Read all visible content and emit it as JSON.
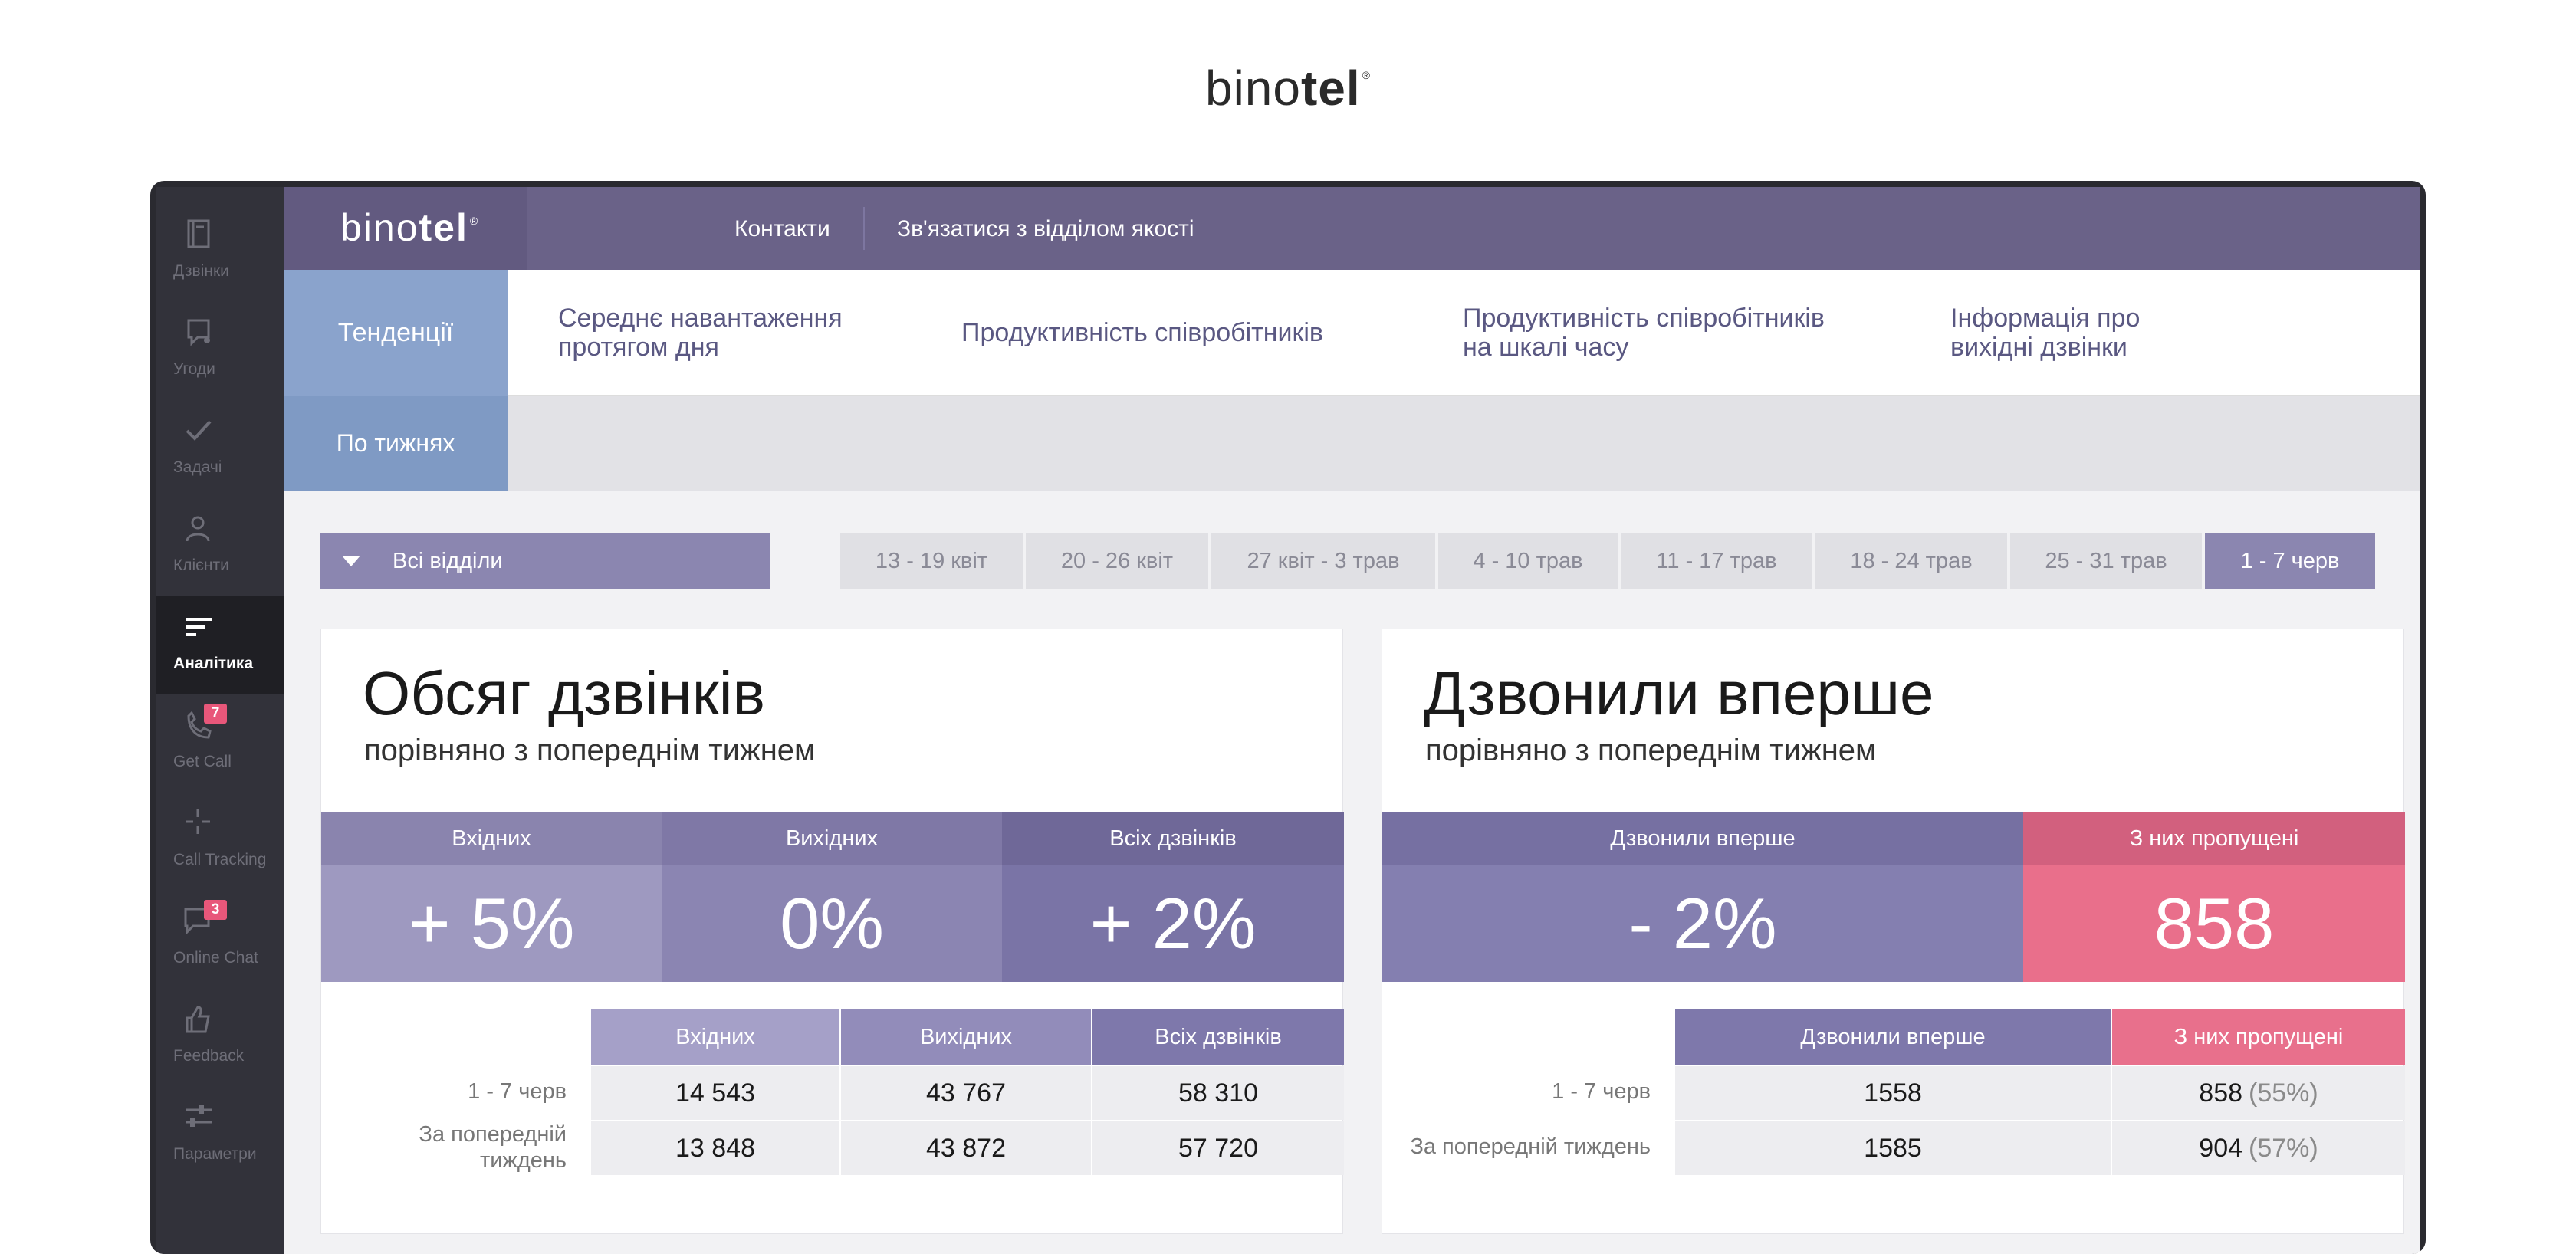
{
  "brand": {
    "regular": "bino",
    "bold": "tel",
    "mark": "®"
  },
  "sidebar": {
    "items": [
      {
        "label": "Дзвінки",
        "icon": "notebook-icon"
      },
      {
        "label": "Угоди",
        "icon": "deal-icon"
      },
      {
        "label": "Задачі",
        "icon": "check-icon"
      },
      {
        "label": "Клієнти",
        "icon": "user-icon"
      },
      {
        "label": "Аналітика",
        "icon": "analytics-icon",
        "active": true
      },
      {
        "label": "Get Call",
        "icon": "phone-callback-icon",
        "badge": "7"
      },
      {
        "label": "Call Tracking",
        "icon": "crosshair-icon"
      },
      {
        "label": "Online Chat",
        "icon": "chat-icon",
        "badge": "3"
      },
      {
        "label": "Feedback",
        "icon": "thumbs-up-icon"
      },
      {
        "label": "Параметри",
        "icon": "sliders-icon"
      }
    ]
  },
  "header": {
    "logo": {
      "regular": "bino",
      "bold": "tel",
      "mark": "®"
    },
    "links": [
      "Контакти",
      "Зв'язатися з відділом якості"
    ]
  },
  "tabs": [
    {
      "label": "Тенденції",
      "active": true
    },
    {
      "label_line1": "Середнє навантаження",
      "label_line2": "протягом дня"
    },
    {
      "label": "Продуктивність співробітників"
    },
    {
      "label_line1": "Продуктивність співробітників",
      "label_line2": "на шкалі часу"
    },
    {
      "label_line1": "Інформація про",
      "label_line2": "вихідні дзвінки"
    }
  ],
  "subtab": "По тижнях",
  "filters": {
    "department": "Всі відділи",
    "weeks": [
      "13 - 19 квіт",
      "20 - 26 квіт",
      "27 квіт - 3 трав",
      "4 - 10 трав",
      "11 - 17 трав",
      "18 - 24 трав",
      "25 - 31 трав",
      "1 - 7 черв"
    ],
    "active_week": "1 - 7 черв"
  },
  "volume_card": {
    "title": "Обсяг дзвінків",
    "subtitle": "порівняно з попереднім тижнем",
    "kpis": [
      {
        "label": "Вхідних",
        "value": "+ 5%"
      },
      {
        "label": "Вихідних",
        "value": "0%"
      },
      {
        "label": "Всіх дзвінків",
        "value": "+ 2%"
      }
    ],
    "table": {
      "columns": [
        "Вхідних",
        "Вихідних",
        "Всіх дзвінків"
      ],
      "rows": [
        {
          "label": "1 - 7 черв",
          "values": [
            "14 543",
            "43 767",
            "58 310"
          ]
        },
        {
          "label_line1": "За попередній",
          "label_line2": "тиждень",
          "values": [
            "13 848",
            "43 872",
            "57 720"
          ]
        }
      ]
    }
  },
  "first_card": {
    "title": "Дзвонили вперше",
    "subtitle": "порівняно з попереднім тижнем",
    "kpis": [
      {
        "label": "Дзвонили вперше",
        "value": "- 2%"
      },
      {
        "label": "З них пропущені",
        "value": "858"
      }
    ],
    "table": {
      "columns": [
        "Дзвонили вперше",
        "З них пропущені"
      ],
      "rows": [
        {
          "label": "1 - 7 черв",
          "values": [
            "1558",
            "858"
          ],
          "pct": "(55%)"
        },
        {
          "label": "За попередній тиждень",
          "values": [
            "1585",
            "904"
          ],
          "pct": "(57%)"
        }
      ]
    }
  },
  "colors": {
    "header": "#6a6288",
    "accent_blue": "#8aa3cc",
    "accent_purple": "#8b86b0",
    "missed_pink": "#e96f8b"
  }
}
